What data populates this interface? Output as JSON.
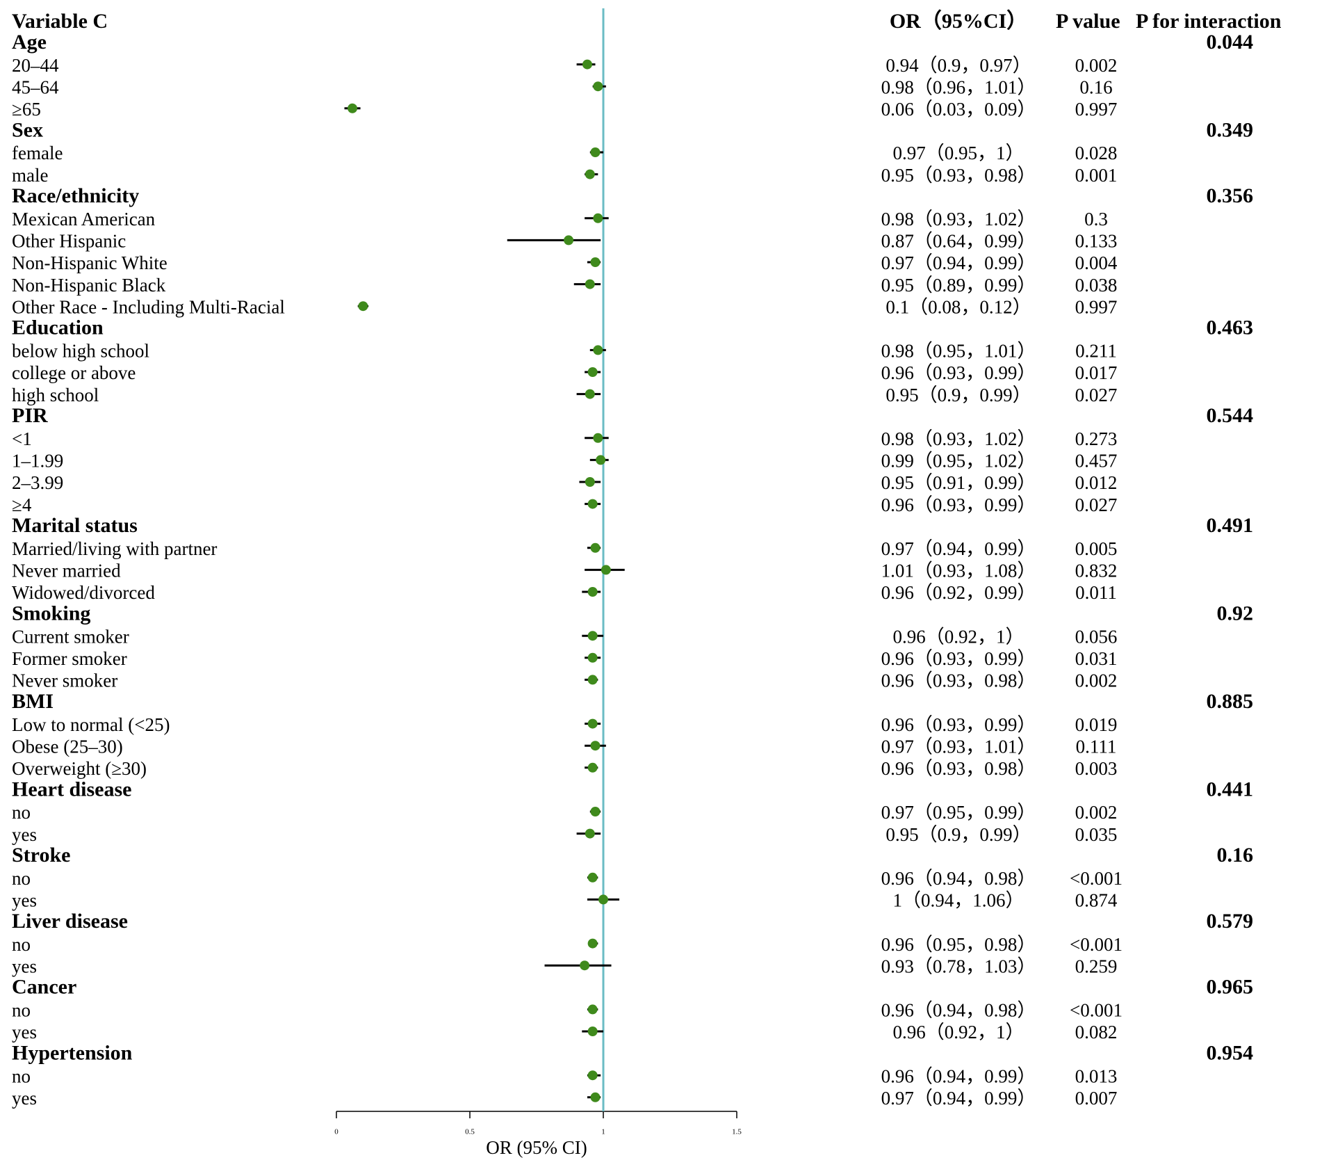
{
  "chart_data": {
    "type": "forest",
    "columns": [
      "Variable C",
      "OR（95%CI）",
      "P value",
      "P for interaction"
    ],
    "xlabel": "OR (95% CI)",
    "xlim": [
      0,
      1.5
    ],
    "xticks": [
      0,
      0.5,
      1,
      1.5
    ],
    "reference": 1,
    "point_color": "#3f8a1c",
    "reference_color": "#6bbcc4",
    "groups": [
      {
        "name": "Age",
        "p_interaction": 0.044,
        "rows": [
          {
            "label": "20–44",
            "or": 0.94,
            "lower": 0.9,
            "upper": 0.97,
            "ci_label": "0.94（0.9，0.97）",
            "p": "0.002"
          },
          {
            "label": "45–64",
            "or": 0.98,
            "lower": 0.96,
            "upper": 1.01,
            "ci_label": "0.98（0.96，1.01）",
            "p": "0.16"
          },
          {
            "label": "≥65",
            "or": 0.06,
            "lower": 0.03,
            "upper": 0.09,
            "ci_label": "0.06（0.03，0.09）",
            "p": "0.997"
          }
        ]
      },
      {
        "name": "Sex",
        "p_interaction": 0.349,
        "rows": [
          {
            "label": "female",
            "or": 0.97,
            "lower": 0.95,
            "upper": 1,
            "ci_label": "0.97（0.95，1）",
            "p": "0.028"
          },
          {
            "label": "male",
            "or": 0.95,
            "lower": 0.93,
            "upper": 0.98,
            "ci_label": "0.95（0.93，0.98）",
            "p": "0.001"
          }
        ]
      },
      {
        "name": "Race/ethnicity",
        "p_interaction": 0.356,
        "rows": [
          {
            "label": "Mexican American",
            "or": 0.98,
            "lower": 0.93,
            "upper": 1.02,
            "ci_label": "0.98（0.93，1.02）",
            "p": "0.3"
          },
          {
            "label": "Other Hispanic",
            "or": 0.87,
            "lower": 0.64,
            "upper": 0.99,
            "ci_label": "0.87（0.64，0.99）",
            "p": "0.133"
          },
          {
            "label": "Non-Hispanic White",
            "or": 0.97,
            "lower": 0.94,
            "upper": 0.99,
            "ci_label": "0.97（0.94，0.99）",
            "p": "0.004"
          },
          {
            "label": "Non-Hispanic Black",
            "or": 0.95,
            "lower": 0.89,
            "upper": 0.99,
            "ci_label": "0.95（0.89，0.99）",
            "p": "0.038"
          },
          {
            "label": "Other Race - Including Multi-Racial",
            "or": 0.1,
            "lower": 0.08,
            "upper": 0.12,
            "ci_label": "0.1（0.08，0.12）",
            "p": "0.997"
          }
        ]
      },
      {
        "name": "Education",
        "p_interaction": 0.463,
        "rows": [
          {
            "label": "below high school",
            "or": 0.98,
            "lower": 0.95,
            "upper": 1.01,
            "ci_label": "0.98（0.95，1.01）",
            "p": "0.211"
          },
          {
            "label": "college or above",
            "or": 0.96,
            "lower": 0.93,
            "upper": 0.99,
            "ci_label": "0.96（0.93，0.99）",
            "p": "0.017"
          },
          {
            "label": "high school",
            "or": 0.95,
            "lower": 0.9,
            "upper": 0.99,
            "ci_label": "0.95（0.9，0.99）",
            "p": "0.027"
          }
        ]
      },
      {
        "name": "PIR",
        "p_interaction": 0.544,
        "rows": [
          {
            "label": "<1",
            "or": 0.98,
            "lower": 0.93,
            "upper": 1.02,
            "ci_label": "0.98（0.93，1.02）",
            "p": "0.273"
          },
          {
            "label": "1–1.99",
            "or": 0.99,
            "lower": 0.95,
            "upper": 1.02,
            "ci_label": "0.99（0.95，1.02）",
            "p": "0.457"
          },
          {
            "label": "2–3.99",
            "or": 0.95,
            "lower": 0.91,
            "upper": 0.99,
            "ci_label": "0.95（0.91，0.99）",
            "p": "0.012"
          },
          {
            "label": "≥4",
            "or": 0.96,
            "lower": 0.93,
            "upper": 0.99,
            "ci_label": "0.96（0.93，0.99）",
            "p": "0.027"
          }
        ]
      },
      {
        "name": "Marital status",
        "p_interaction": 0.491,
        "rows": [
          {
            "label": "Married/living with partner",
            "or": 0.97,
            "lower": 0.94,
            "upper": 0.99,
            "ci_label": "0.97（0.94，0.99）",
            "p": "0.005"
          },
          {
            "label": "Never married",
            "or": 1.01,
            "lower": 0.93,
            "upper": 1.08,
            "ci_label": "1.01（0.93，1.08）",
            "p": "0.832"
          },
          {
            "label": "Widowed/divorced",
            "or": 0.96,
            "lower": 0.92,
            "upper": 0.99,
            "ci_label": "0.96（0.92，0.99）",
            "p": "0.011"
          }
        ]
      },
      {
        "name": "Smoking",
        "p_interaction": 0.92,
        "rows": [
          {
            "label": "Current smoker",
            "or": 0.96,
            "lower": 0.92,
            "upper": 1,
            "ci_label": "0.96（0.92，1）",
            "p": "0.056"
          },
          {
            "label": "Former smoker",
            "or": 0.96,
            "lower": 0.93,
            "upper": 0.99,
            "ci_label": "0.96（0.93，0.99）",
            "p": "0.031"
          },
          {
            "label": "Never smoker",
            "or": 0.96,
            "lower": 0.93,
            "upper": 0.98,
            "ci_label": "0.96（0.93，0.98）",
            "p": "0.002"
          }
        ]
      },
      {
        "name": "BMI",
        "p_interaction": 0.885,
        "rows": [
          {
            "label": "Low to normal (<25)",
            "or": 0.96,
            "lower": 0.93,
            "upper": 0.99,
            "ci_label": "0.96（0.93，0.99）",
            "p": "0.019"
          },
          {
            "label": "Obese (25–30)",
            "or": 0.97,
            "lower": 0.93,
            "upper": 1.01,
            "ci_label": "0.97（0.93，1.01）",
            "p": "0.111"
          },
          {
            "label": "Overweight (≥30)",
            "or": 0.96,
            "lower": 0.93,
            "upper": 0.98,
            "ci_label": "0.96（0.93，0.98）",
            "p": "0.003"
          }
        ]
      },
      {
        "name": "Heart disease",
        "p_interaction": 0.441,
        "rows": [
          {
            "label": "no",
            "or": 0.97,
            "lower": 0.95,
            "upper": 0.99,
            "ci_label": "0.97（0.95，0.99）",
            "p": "0.002"
          },
          {
            "label": "yes",
            "or": 0.95,
            "lower": 0.9,
            "upper": 0.99,
            "ci_label": "0.95（0.9，0.99）",
            "p": "0.035"
          }
        ]
      },
      {
        "name": "Stroke",
        "p_interaction": 0.16,
        "rows": [
          {
            "label": "no",
            "or": 0.96,
            "lower": 0.94,
            "upper": 0.98,
            "ci_label": "0.96（0.94，0.98）",
            "p": "<0.001"
          },
          {
            "label": "yes",
            "or": 1,
            "lower": 0.94,
            "upper": 1.06,
            "ci_label": "1（0.94，1.06）",
            "p": "0.874"
          }
        ]
      },
      {
        "name": "Liver disease",
        "p_interaction": 0.579,
        "rows": [
          {
            "label": "no",
            "or": 0.96,
            "lower": 0.95,
            "upper": 0.98,
            "ci_label": "0.96（0.95，0.98）",
            "p": "<0.001"
          },
          {
            "label": "yes",
            "or": 0.93,
            "lower": 0.78,
            "upper": 1.03,
            "ci_label": "0.93（0.78，1.03）",
            "p": "0.259"
          }
        ]
      },
      {
        "name": "Cancer",
        "p_interaction": 0.965,
        "rows": [
          {
            "label": "no",
            "or": 0.96,
            "lower": 0.94,
            "upper": 0.98,
            "ci_label": "0.96（0.94，0.98）",
            "p": "<0.001"
          },
          {
            "label": "yes",
            "or": 0.96,
            "lower": 0.92,
            "upper": 1,
            "ci_label": "0.96（0.92，1）",
            "p": "0.082"
          }
        ]
      },
      {
        "name": "Hypertension",
        "p_interaction": 0.954,
        "rows": [
          {
            "label": "no",
            "or": 0.96,
            "lower": 0.94,
            "upper": 0.99,
            "ci_label": "0.96（0.94，0.99）",
            "p": "0.013"
          },
          {
            "label": "yes",
            "or": 0.97,
            "lower": 0.94,
            "upper": 0.99,
            "ci_label": "0.97（0.94，0.99）",
            "p": "0.007"
          }
        ]
      }
    ]
  }
}
